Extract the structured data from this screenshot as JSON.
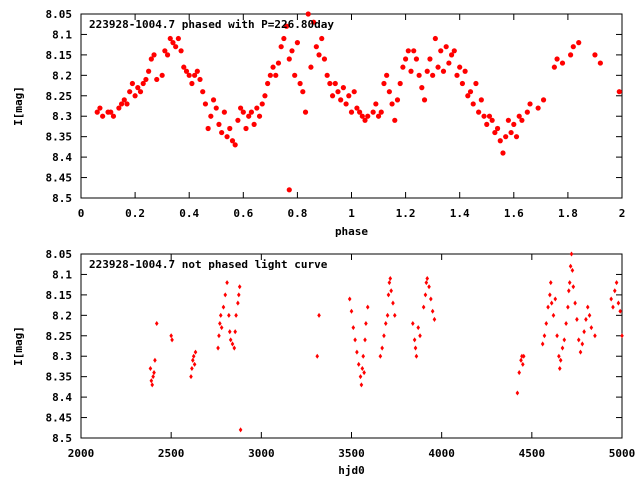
{
  "chart_data": [
    {
      "type": "scatter",
      "title": "223928-1004.7 phased with P=226.80day",
      "xlabel": "phase",
      "ylabel": "I[mag]",
      "xlim": [
        0,
        2
      ],
      "ylim": [
        8.05,
        8.5
      ],
      "y_inverted": true,
      "marker": "filled-circle",
      "color": "#ff0000",
      "xticks": [
        0,
        0.2,
        0.4,
        0.6,
        0.8,
        1,
        1.2,
        1.4,
        1.6,
        1.8,
        2
      ],
      "xtick_labels": [
        "0",
        "0.2",
        "0.4",
        "0.6",
        "0.8",
        "1",
        "1.2",
        "1.4",
        "1.6",
        "1.8",
        "2"
      ],
      "yticks": [
        8.05,
        8.1,
        8.15,
        8.2,
        8.25,
        8.3,
        8.35,
        8.4,
        8.45,
        8.5
      ],
      "ytick_labels": [
        "8.05",
        "8.1",
        "8.15",
        "8.2",
        "8.25",
        "8.3",
        "8.35",
        "8.4",
        "8.45",
        "8.5"
      ],
      "points": [
        [
          0.06,
          8.29
        ],
        [
          0.07,
          8.28
        ],
        [
          0.08,
          8.3
        ],
        [
          0.1,
          8.29
        ],
        [
          0.11,
          8.29
        ],
        [
          0.12,
          8.3
        ],
        [
          0.14,
          8.28
        ],
        [
          0.15,
          8.27
        ],
        [
          0.16,
          8.26
        ],
        [
          0.17,
          8.27
        ],
        [
          0.18,
          8.24
        ],
        [
          0.19,
          8.22
        ],
        [
          0.2,
          8.25
        ],
        [
          0.21,
          8.23
        ],
        [
          0.22,
          8.24
        ],
        [
          0.23,
          8.22
        ],
        [
          0.24,
          8.21
        ],
        [
          0.25,
          8.19
        ],
        [
          0.26,
          8.16
        ],
        [
          0.27,
          8.15
        ],
        [
          0.28,
          8.21
        ],
        [
          0.3,
          8.2
        ],
        [
          0.31,
          8.14
        ],
        [
          0.32,
          8.15
        ],
        [
          0.33,
          8.11
        ],
        [
          0.34,
          8.12
        ],
        [
          0.35,
          8.13
        ],
        [
          0.36,
          8.11
        ],
        [
          0.37,
          8.14
        ],
        [
          0.38,
          8.18
        ],
        [
          0.39,
          8.19
        ],
        [
          0.4,
          8.2
        ],
        [
          0.41,
          8.22
        ],
        [
          0.42,
          8.2
        ],
        [
          0.43,
          8.19
        ],
        [
          0.44,
          8.21
        ],
        [
          0.45,
          8.24
        ],
        [
          0.46,
          8.27
        ],
        [
          0.47,
          8.33
        ],
        [
          0.48,
          8.3
        ],
        [
          0.49,
          8.26
        ],
        [
          0.5,
          8.28
        ],
        [
          0.51,
          8.32
        ],
        [
          0.52,
          8.34
        ],
        [
          0.53,
          8.29
        ],
        [
          0.54,
          8.35
        ],
        [
          0.55,
          8.33
        ],
        [
          0.56,
          8.36
        ],
        [
          0.57,
          8.37
        ],
        [
          0.58,
          8.31
        ],
        [
          0.59,
          8.28
        ],
        [
          0.6,
          8.29
        ],
        [
          0.61,
          8.33
        ],
        [
          0.62,
          8.3
        ],
        [
          0.63,
          8.29
        ],
        [
          0.64,
          8.32
        ],
        [
          0.65,
          8.28
        ],
        [
          0.66,
          8.3
        ],
        [
          0.67,
          8.27
        ],
        [
          0.68,
          8.25
        ],
        [
          0.69,
          8.22
        ],
        [
          0.7,
          8.2
        ],
        [
          0.71,
          8.18
        ],
        [
          0.72,
          8.2
        ],
        [
          0.73,
          8.17
        ],
        [
          0.74,
          8.13
        ],
        [
          0.75,
          8.11
        ],
        [
          0.76,
          8.08
        ],
        [
          0.77,
          8.16
        ],
        [
          0.77,
          8.48
        ],
        [
          0.78,
          8.14
        ],
        [
          0.79,
          8.2
        ],
        [
          0.8,
          8.12
        ],
        [
          0.81,
          8.22
        ],
        [
          0.82,
          8.24
        ],
        [
          0.83,
          8.29
        ],
        [
          0.84,
          8.05
        ],
        [
          0.85,
          8.18
        ],
        [
          0.86,
          8.07
        ],
        [
          0.87,
          8.13
        ],
        [
          0.88,
          8.15
        ],
        [
          0.89,
          8.11
        ],
        [
          0.9,
          8.16
        ],
        [
          0.91,
          8.2
        ],
        [
          0.92,
          8.22
        ],
        [
          0.93,
          8.25
        ],
        [
          0.94,
          8.22
        ],
        [
          0.95,
          8.24
        ],
        [
          0.96,
          8.26
        ],
        [
          0.97,
          8.23
        ],
        [
          0.98,
          8.27
        ],
        [
          0.99,
          8.25
        ],
        [
          1.0,
          8.29
        ],
        [
          1.01,
          8.24
        ],
        [
          1.02,
          8.28
        ],
        [
          1.03,
          8.29
        ],
        [
          1.04,
          8.3
        ],
        [
          1.05,
          8.31
        ],
        [
          1.06,
          8.3
        ],
        [
          1.08,
          8.29
        ],
        [
          1.09,
          8.27
        ],
        [
          1.1,
          8.3
        ],
        [
          1.11,
          8.29
        ],
        [
          1.12,
          8.22
        ],
        [
          1.13,
          8.2
        ],
        [
          1.14,
          8.24
        ],
        [
          1.15,
          8.27
        ],
        [
          1.16,
          8.31
        ],
        [
          1.17,
          8.26
        ],
        [
          1.18,
          8.22
        ],
        [
          1.19,
          8.18
        ],
        [
          1.2,
          8.16
        ],
        [
          1.21,
          8.14
        ],
        [
          1.22,
          8.19
        ],
        [
          1.23,
          8.14
        ],
        [
          1.24,
          8.16
        ],
        [
          1.25,
          8.2
        ],
        [
          1.26,
          8.23
        ],
        [
          1.27,
          8.26
        ],
        [
          1.28,
          8.19
        ],
        [
          1.29,
          8.16
        ],
        [
          1.3,
          8.2
        ],
        [
          1.31,
          8.11
        ],
        [
          1.32,
          8.18
        ],
        [
          1.33,
          8.14
        ],
        [
          1.34,
          8.19
        ],
        [
          1.35,
          8.13
        ],
        [
          1.36,
          8.17
        ],
        [
          1.37,
          8.15
        ],
        [
          1.38,
          8.14
        ],
        [
          1.39,
          8.2
        ],
        [
          1.4,
          8.18
        ],
        [
          1.41,
          8.22
        ],
        [
          1.42,
          8.19
        ],
        [
          1.43,
          8.25
        ],
        [
          1.44,
          8.24
        ],
        [
          1.45,
          8.27
        ],
        [
          1.46,
          8.22
        ],
        [
          1.47,
          8.29
        ],
        [
          1.48,
          8.26
        ],
        [
          1.49,
          8.3
        ],
        [
          1.5,
          8.32
        ],
        [
          1.51,
          8.3
        ],
        [
          1.52,
          8.31
        ],
        [
          1.53,
          8.34
        ],
        [
          1.54,
          8.33
        ],
        [
          1.55,
          8.36
        ],
        [
          1.56,
          8.39
        ],
        [
          1.57,
          8.35
        ],
        [
          1.58,
          8.31
        ],
        [
          1.59,
          8.34
        ],
        [
          1.6,
          8.32
        ],
        [
          1.61,
          8.35
        ],
        [
          1.62,
          8.3
        ],
        [
          1.63,
          8.31
        ],
        [
          1.65,
          8.29
        ],
        [
          1.66,
          8.27
        ],
        [
          1.69,
          8.28
        ],
        [
          1.71,
          8.26
        ],
        [
          1.75,
          8.18
        ],
        [
          1.76,
          8.16
        ],
        [
          1.78,
          8.17
        ],
        [
          1.81,
          8.15
        ],
        [
          1.82,
          8.13
        ],
        [
          1.84,
          8.12
        ],
        [
          1.9,
          8.15
        ],
        [
          1.92,
          8.17
        ],
        [
          1.99,
          8.24
        ]
      ]
    },
    {
      "type": "scatter",
      "title": "223928-1004.7 not phased light curve",
      "xlabel": "hjd0",
      "ylabel": "I[mag]",
      "xlim": [
        2000,
        5000
      ],
      "ylim": [
        8.05,
        8.5
      ],
      "y_inverted": true,
      "marker": "small-diamond",
      "color": "#ff0000",
      "xticks": [
        2000,
        2500,
        3000,
        3500,
        4000,
        4500,
        5000
      ],
      "xtick_labels": [
        "2000",
        "2500",
        "3000",
        "3500",
        "4000",
        "4500",
        "5000"
      ],
      "yticks": [
        8.05,
        8.1,
        8.15,
        8.2,
        8.25,
        8.3,
        8.35,
        8.4,
        8.45,
        8.5
      ],
      "ytick_labels": [
        "8.05",
        "8.1",
        "8.15",
        "8.2",
        "8.25",
        "8.3",
        "8.35",
        "8.4",
        "8.45",
        "8.5"
      ],
      "points": [
        [
          2385,
          8.33
        ],
        [
          2390,
          8.36
        ],
        [
          2395,
          8.37
        ],
        [
          2400,
          8.35
        ],
        [
          2405,
          8.34
        ],
        [
          2410,
          8.31
        ],
        [
          2420,
          8.22
        ],
        [
          2500,
          8.25
        ],
        [
          2505,
          8.26
        ],
        [
          2610,
          8.35
        ],
        [
          2615,
          8.33
        ],
        [
          2620,
          8.31
        ],
        [
          2625,
          8.3
        ],
        [
          2630,
          8.32
        ],
        [
          2635,
          8.29
        ],
        [
          2760,
          8.28
        ],
        [
          2765,
          8.25
        ],
        [
          2770,
          8.22
        ],
        [
          2775,
          8.2
        ],
        [
          2780,
          8.23
        ],
        [
          2790,
          8.18
        ],
        [
          2800,
          8.15
        ],
        [
          2810,
          8.12
        ],
        [
          2820,
          8.2
        ],
        [
          2825,
          8.24
        ],
        [
          2830,
          8.26
        ],
        [
          2840,
          8.27
        ],
        [
          2850,
          8.28
        ],
        [
          2855,
          8.24
        ],
        [
          2860,
          8.2
        ],
        [
          2870,
          8.17
        ],
        [
          2875,
          8.15
        ],
        [
          2880,
          8.13
        ],
        [
          2885,
          8.48
        ],
        [
          3310,
          8.3
        ],
        [
          3320,
          8.2
        ],
        [
          3490,
          8.16
        ],
        [
          3500,
          8.19
        ],
        [
          3510,
          8.23
        ],
        [
          3520,
          8.26
        ],
        [
          3530,
          8.29
        ],
        [
          3540,
          8.32
        ],
        [
          3550,
          8.35
        ],
        [
          3555,
          8.37
        ],
        [
          3560,
          8.33
        ],
        [
          3565,
          8.3
        ],
        [
          3570,
          8.34
        ],
        [
          3575,
          8.26
        ],
        [
          3580,
          8.22
        ],
        [
          3590,
          8.18
        ],
        [
          3660,
          8.3
        ],
        [
          3670,
          8.28
        ],
        [
          3680,
          8.25
        ],
        [
          3690,
          8.22
        ],
        [
          3700,
          8.2
        ],
        [
          3705,
          8.15
        ],
        [
          3710,
          8.12
        ],
        [
          3715,
          8.11
        ],
        [
          3720,
          8.14
        ],
        [
          3730,
          8.17
        ],
        [
          3740,
          8.2
        ],
        [
          3840,
          8.22
        ],
        [
          3850,
          8.26
        ],
        [
          3855,
          8.28
        ],
        [
          3860,
          8.3
        ],
        [
          3870,
          8.23
        ],
        [
          3880,
          8.25
        ],
        [
          3900,
          8.18
        ],
        [
          3910,
          8.15
        ],
        [
          3915,
          8.12
        ],
        [
          3920,
          8.11
        ],
        [
          3930,
          8.13
        ],
        [
          3940,
          8.16
        ],
        [
          3950,
          8.19
        ],
        [
          3960,
          8.21
        ],
        [
          4420,
          8.39
        ],
        [
          4430,
          8.34
        ],
        [
          4440,
          8.31
        ],
        [
          4445,
          8.3
        ],
        [
          4450,
          8.32
        ],
        [
          4455,
          8.3
        ],
        [
          4560,
          8.27
        ],
        [
          4570,
          8.25
        ],
        [
          4580,
          8.22
        ],
        [
          4590,
          8.18
        ],
        [
          4600,
          8.15
        ],
        [
          4605,
          8.12
        ],
        [
          4610,
          8.17
        ],
        [
          4620,
          8.2
        ],
        [
          4630,
          8.16
        ],
        [
          4640,
          8.25
        ],
        [
          4650,
          8.3
        ],
        [
          4655,
          8.33
        ],
        [
          4660,
          8.31
        ],
        [
          4670,
          8.28
        ],
        [
          4680,
          8.26
        ],
        [
          4690,
          8.22
        ],
        [
          4700,
          8.18
        ],
        [
          4705,
          8.14
        ],
        [
          4710,
          8.12
        ],
        [
          4715,
          8.08
        ],
        [
          4720,
          8.05
        ],
        [
          4725,
          8.09
        ],
        [
          4730,
          8.13
        ],
        [
          4740,
          8.17
        ],
        [
          4750,
          8.21
        ],
        [
          4760,
          8.26
        ],
        [
          4770,
          8.29
        ],
        [
          4780,
          8.27
        ],
        [
          4790,
          8.24
        ],
        [
          4800,
          8.21
        ],
        [
          4810,
          8.18
        ],
        [
          4820,
          8.2
        ],
        [
          4830,
          8.23
        ],
        [
          4850,
          8.25
        ],
        [
          4940,
          8.16
        ],
        [
          4950,
          8.18
        ],
        [
          4960,
          8.14
        ],
        [
          4970,
          8.12
        ],
        [
          4980,
          8.17
        ],
        [
          4990,
          8.19
        ],
        [
          5000,
          8.25
        ]
      ]
    }
  ]
}
